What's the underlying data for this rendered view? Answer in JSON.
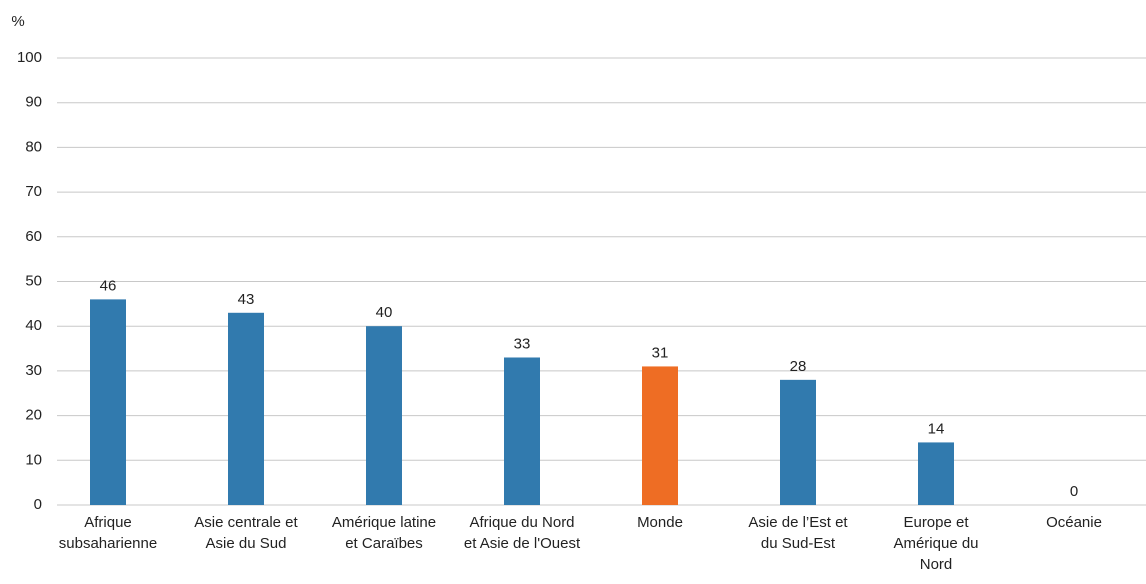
{
  "chart_data": {
    "type": "bar",
    "y_label": "%",
    "categories": [
      "Afrique subsaharienne",
      "Asie centrale et Asie du Sud",
      "Amérique latine et Caraïbes",
      "Afrique du Nord et Asie de l'Ouest",
      "Monde",
      "Asie de l’Est et du Sud-Est",
      "Europe et Amérique du Nord",
      "Océanie"
    ],
    "values": [
      46,
      43,
      40,
      33,
      31,
      28,
      14,
      0
    ],
    "colors": [
      "#317aae",
      "#317aae",
      "#317aae",
      "#317aae",
      "#ee6d24",
      "#317aae",
      "#317aae",
      "#317aae"
    ],
    "ylim": [
      0,
      100
    ],
    "yticks": [
      0,
      10,
      20,
      30,
      40,
      50,
      60,
      70,
      80,
      90,
      100
    ],
    "grid": true
  }
}
